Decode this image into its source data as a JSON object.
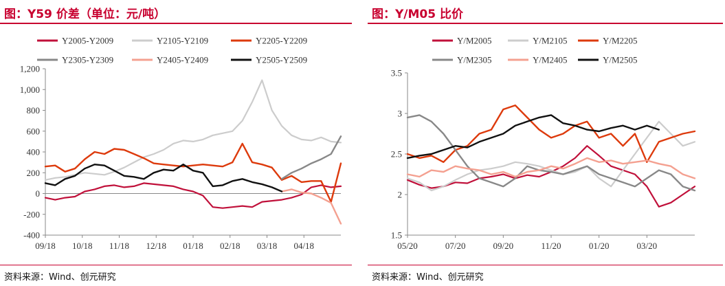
{
  "left_panel": {
    "title": "图：Y59 价差（单位：元/吨）",
    "source": "资料来源：Wind、创元研究"
  },
  "right_panel": {
    "title": "图：Y/M05 比价",
    "source": "资料来源：Wind、创元研究"
  },
  "chart_data": [
    {
      "type": "line",
      "title": "图：Y59 价差（单位：元/吨）",
      "xlabel": "",
      "ylabel": "",
      "ylim": [
        -400,
        1200
      ],
      "yticks": [
        -400,
        -200,
        0,
        200,
        400,
        600,
        800,
        1000,
        1200
      ],
      "ytick_labels": [
        "-400",
        "-200",
        "0",
        "200",
        "400",
        "600",
        "800",
        "1,000",
        "1,200"
      ],
      "x_tick_labels": [
        "09/18",
        "10/18",
        "11/18",
        "12/18",
        "01/18",
        "02/18",
        "03/18",
        "04/18"
      ],
      "xlim": [
        0,
        30
      ],
      "x": [
        0,
        1,
        2,
        3,
        4,
        5,
        6,
        7,
        8,
        9,
        10,
        11,
        12,
        13,
        14,
        15,
        16,
        17,
        18,
        19,
        20,
        21,
        22,
        23,
        24,
        25,
        26,
        27,
        28,
        29,
        30
      ],
      "legend_position": "top",
      "grid": false,
      "series": [
        {
          "name": "Y2005-Y2009",
          "color": "#c0103a",
          "width": 2.2,
          "values": [
            -40,
            -60,
            -40,
            -30,
            20,
            40,
            70,
            80,
            60,
            70,
            100,
            90,
            80,
            70,
            40,
            20,
            -20,
            -130,
            -140,
            -130,
            -120,
            -130,
            -80,
            -70,
            -60,
            -40,
            -10,
            60,
            80,
            60,
            70
          ]
        },
        {
          "name": "Y2105-Y2109",
          "color": "#cccccc",
          "width": 2.2,
          "values": [
            130,
            150,
            160,
            180,
            200,
            190,
            180,
            210,
            250,
            300,
            350,
            380,
            420,
            480,
            510,
            500,
            520,
            560,
            580,
            600,
            700,
            880,
            1090,
            800,
            650,
            560,
            520,
            510,
            540,
            500,
            490
          ]
        },
        {
          "name": "Y2205-Y2209",
          "color": "#dd3a0c",
          "width": 2.4,
          "values": [
            260,
            270,
            210,
            240,
            330,
            400,
            380,
            430,
            420,
            380,
            340,
            290,
            280,
            270,
            260,
            270,
            280,
            270,
            260,
            300,
            480,
            300,
            280,
            250,
            130,
            170,
            110,
            120,
            120,
            -80,
            290
          ]
        },
        {
          "name": "Y2305-Y2309",
          "color": "#888888",
          "width": 2.4,
          "values": [
            null,
            null,
            null,
            null,
            null,
            null,
            null,
            null,
            null,
            null,
            null,
            null,
            null,
            null,
            null,
            null,
            null,
            null,
            null,
            null,
            null,
            null,
            null,
            null,
            140,
            200,
            240,
            290,
            330,
            380,
            550
          ]
        },
        {
          "name": "Y2405-Y2409",
          "color": "#f4a090",
          "width": 2.4,
          "values": [
            null,
            null,
            null,
            null,
            null,
            null,
            null,
            null,
            null,
            null,
            null,
            null,
            null,
            null,
            null,
            null,
            null,
            null,
            null,
            null,
            null,
            null,
            null,
            null,
            20,
            40,
            10,
            0,
            -40,
            -90,
            -290
          ]
        },
        {
          "name": "Y2505-Y2509",
          "color": "#111111",
          "width": 2.4,
          "values": [
            100,
            80,
            140,
            170,
            240,
            280,
            270,
            220,
            170,
            160,
            140,
            200,
            230,
            220,
            280,
            220,
            200,
            70,
            80,
            120,
            140,
            110,
            90,
            60,
            20,
            null,
            null,
            null,
            null,
            null,
            null
          ]
        }
      ]
    },
    {
      "type": "line",
      "title": "图：Y/M05 比价",
      "xlabel": "",
      "ylabel": "",
      "ylim": [
        1.5,
        3.5
      ],
      "yticks": [
        1.5,
        2,
        2.5,
        3,
        3.5
      ],
      "ytick_labels": [
        "1.5",
        "2",
        "2.5",
        "3",
        "3.5"
      ],
      "x_tick_labels": [
        "05/20",
        "07/20",
        "09/20",
        "11/20",
        "01/20",
        "03/20"
      ],
      "xlim": [
        0,
        24
      ],
      "x": [
        0,
        1,
        2,
        3,
        4,
        5,
        6,
        7,
        8,
        9,
        10,
        11,
        12,
        13,
        14,
        15,
        16,
        17,
        18,
        19,
        20,
        21,
        22,
        23,
        24
      ],
      "legend_position": "top",
      "grid": false,
      "series": [
        {
          "name": "Y/M2005",
          "color": "#c0103a",
          "width": 2.2,
          "values": [
            2.18,
            2.12,
            2.08,
            2.1,
            2.15,
            2.14,
            2.2,
            2.22,
            2.25,
            2.2,
            2.24,
            2.22,
            2.28,
            2.35,
            2.45,
            2.6,
            2.48,
            2.35,
            2.3,
            2.25,
            2.1,
            1.85,
            1.9,
            2.0,
            2.1
          ]
        },
        {
          "name": "Y/M2105",
          "color": "#cccccc",
          "width": 2.2,
          "values": [
            2.2,
            2.15,
            2.05,
            2.1,
            2.18,
            2.25,
            2.3,
            2.32,
            2.35,
            2.4,
            2.38,
            2.35,
            2.3,
            2.25,
            2.28,
            2.35,
            2.2,
            2.1,
            2.3,
            2.5,
            2.7,
            2.9,
            2.75,
            2.6,
            2.65
          ]
        },
        {
          "name": "Y/M2205",
          "color": "#dd3a0c",
          "width": 2.4,
          "values": [
            2.5,
            2.45,
            2.48,
            2.4,
            2.55,
            2.6,
            2.75,
            2.8,
            3.05,
            3.1,
            2.95,
            2.8,
            2.7,
            2.75,
            2.85,
            2.9,
            2.7,
            2.75,
            2.6,
            2.75,
            2.4,
            2.65,
            2.7,
            2.75,
            2.78
          ]
        },
        {
          "name": "Y/M2305",
          "color": "#888888",
          "width": 2.4,
          "values": [
            2.95,
            2.98,
            2.9,
            2.75,
            2.55,
            2.35,
            2.2,
            2.15,
            2.1,
            2.2,
            2.35,
            2.3,
            2.28,
            2.25,
            2.3,
            2.35,
            2.25,
            2.2,
            2.15,
            2.1,
            2.2,
            2.3,
            2.25,
            2.1,
            2.05
          ]
        },
        {
          "name": "Y/M2405",
          "color": "#f4a090",
          "width": 2.4,
          "values": [
            2.25,
            2.22,
            2.3,
            2.28,
            2.35,
            2.32,
            2.3,
            2.25,
            2.28,
            2.22,
            2.28,
            2.3,
            2.35,
            2.32,
            2.38,
            2.45,
            2.4,
            2.42,
            2.38,
            2.4,
            2.42,
            2.38,
            2.35,
            2.25,
            2.2
          ]
        },
        {
          "name": "Y/M2505",
          "color": "#111111",
          "width": 2.4,
          "values": [
            2.45,
            2.48,
            2.5,
            2.55,
            2.6,
            2.58,
            2.65,
            2.7,
            2.75,
            2.85,
            2.9,
            2.95,
            2.98,
            2.88,
            2.85,
            2.8,
            2.78,
            2.82,
            2.85,
            2.8,
            2.85,
            2.8,
            null,
            null,
            null
          ]
        }
      ]
    }
  ]
}
